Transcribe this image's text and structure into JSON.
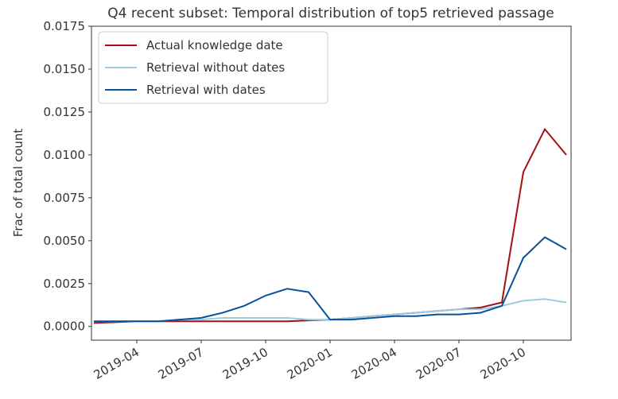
{
  "chart_data": {
    "type": "line",
    "title": "Q4 recent subset: Temporal distribution of top5 retrieved passage",
    "y_label": "Frac of total count",
    "x": [
      "2019-02",
      "2019-03",
      "2019-04",
      "2019-05",
      "2019-06",
      "2019-07",
      "2019-08",
      "2019-09",
      "2019-10",
      "2019-11",
      "2019-12",
      "2020-01",
      "2020-02",
      "2020-03",
      "2020-04",
      "2020-05",
      "2020-06",
      "2020-07",
      "2020-08",
      "2020-09",
      "2020-10",
      "2020-11",
      "2020-12"
    ],
    "series": [
      {
        "name": "Actual knowledge date",
        "color": "#a50f15",
        "values": [
          0.0002,
          0.00025,
          0.0003,
          0.0003,
          0.0003,
          0.0003,
          0.0003,
          0.0003,
          0.0003,
          0.0003,
          0.00035,
          0.0004,
          0.0005,
          0.0006,
          0.0007,
          0.0008,
          0.0009,
          0.001,
          0.0011,
          0.0014,
          0.009,
          0.0115,
          0.01
        ]
      },
      {
        "name": "Retrieval without dates",
        "color": "#9ecae1",
        "values": [
          0.0003,
          0.0003,
          0.0003,
          0.0003,
          0.0004,
          0.0004,
          0.0005,
          0.0005,
          0.0005,
          0.0005,
          0.0004,
          0.0004,
          0.0005,
          0.0006,
          0.0007,
          0.0008,
          0.0009,
          0.001,
          0.001,
          0.0012,
          0.0015,
          0.0016,
          0.0014
        ]
      },
      {
        "name": "Retrieval with dates",
        "color": "#08519c",
        "values": [
          0.0003,
          0.0003,
          0.0003,
          0.0003,
          0.0004,
          0.0005,
          0.0008,
          0.0012,
          0.0018,
          0.0022,
          0.002,
          0.0004,
          0.0004,
          0.0005,
          0.0006,
          0.0006,
          0.0007,
          0.0007,
          0.0008,
          0.0012,
          0.004,
          0.0052,
          0.0045
        ]
      }
    ],
    "xticks": [
      "2019-04",
      "2019-07",
      "2019-10",
      "2020-01",
      "2020-04",
      "2020-07",
      "2020-10"
    ],
    "ylim": [
      -0.0008,
      0.0175
    ],
    "yticks": [
      {
        "value": 0,
        "label": "0.0000"
      },
      {
        "value": 0.0025,
        "label": "0.0025"
      },
      {
        "value": 0.005,
        "label": "0.0050"
      },
      {
        "value": 0.0075,
        "label": "0.0075"
      },
      {
        "value": 0.01,
        "label": "0.0100"
      },
      {
        "value": 0.0125,
        "label": "0.0125"
      },
      {
        "value": 0.015,
        "label": "0.0150"
      },
      {
        "value": 0.0175,
        "label": "0.0175"
      }
    ],
    "legend": "upper left"
  }
}
